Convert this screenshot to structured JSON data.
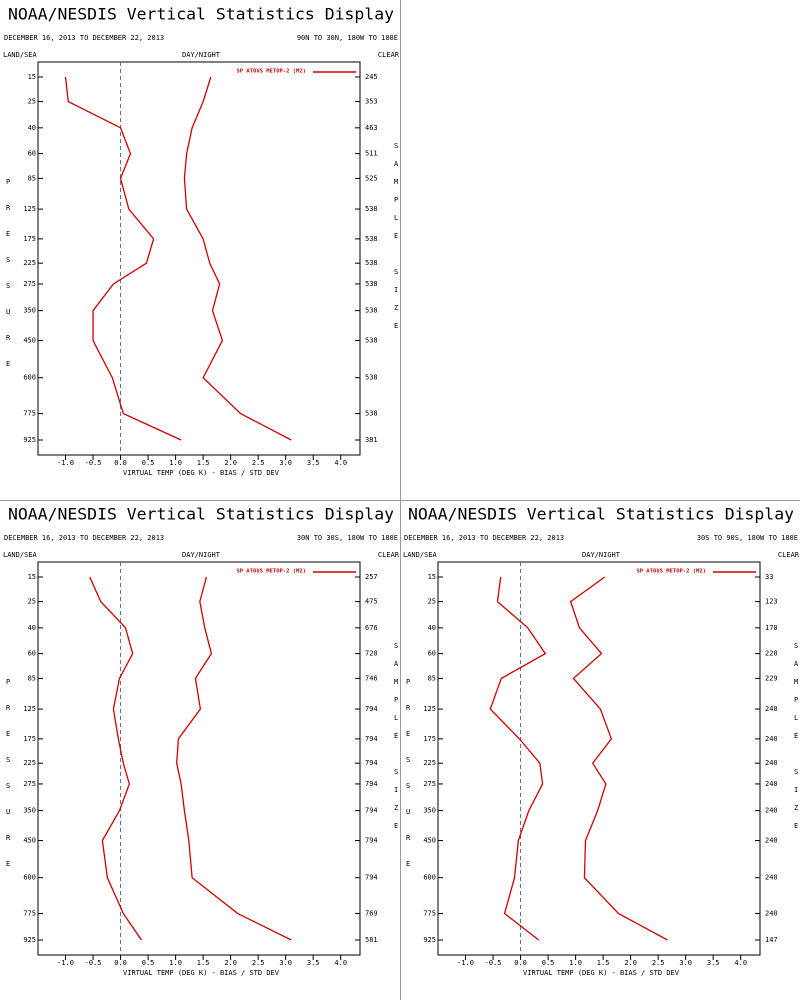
{
  "chart_data": [
    {
      "type": "line",
      "title": "NOAA/NESDIS Vertical Statistics Display",
      "period": "DECEMBER 16, 2013 TO DECEMBER 22, 2013",
      "region": "90N TO 30N, 180W TO 180E",
      "land_sea": "LAND/SEA",
      "day_night": "DAY/NIGHT",
      "clear": "CLEAR",
      "y_label": "PRESSURE",
      "y2_label": "SAMPLE SIZE",
      "x_label": "VIRTUAL TEMP (DEG K) - BIAS / STD DEV",
      "levels": [
        15,
        25,
        40,
        60,
        85,
        125,
        175,
        225,
        275,
        350,
        450,
        600,
        775,
        925
      ],
      "sample_size": [
        245,
        353,
        463,
        511,
        525,
        538,
        538,
        538,
        538,
        538,
        538,
        538,
        538,
        381
      ],
      "series": [
        {
          "name": "SP ATOVS METOP-2 (M2)",
          "color": "#d00000",
          "bias": [
            -1.0,
            -0.95,
            0.0,
            0.18,
            0.0,
            0.15,
            0.6,
            0.47,
            -0.13,
            -0.5,
            -0.5,
            -0.15,
            0.05,
            1.1
          ],
          "std_dev": [
            1.64,
            1.5,
            1.3,
            1.2,
            1.16,
            1.2,
            1.5,
            1.62,
            1.8,
            1.67,
            1.85,
            1.5,
            2.18,
            3.1
          ]
        }
      ],
      "xlim": [
        -1.5,
        4.35
      ],
      "xticks": [
        {
          "value": -1,
          "label": "-1.0"
        },
        -0.5,
        {
          "value": 0,
          "label": "0.0"
        },
        0.5,
        {
          "value": 1,
          "label": "1.0"
        },
        1.5,
        {
          "value": 2,
          "label": "2.0"
        },
        2.5,
        {
          "value": 3,
          "label": "3.0"
        },
        3.5,
        {
          "value": 4,
          "label": "4.0"
        }
      ]
    },
    {
      "type": "line",
      "title": "NOAA/NESDIS Vertical Statistics Display",
      "period": "DECEMBER 16, 2013 TO DECEMBER 22, 2013",
      "region": "30N TO 30S, 180W TO 180E",
      "land_sea": "LAND/SEA",
      "day_night": "DAY/NIGHT",
      "clear": "CLEAR",
      "y_label": "PRESSURE",
      "y2_label": "SAMPLE SIZE",
      "x_label": "VIRTUAL TEMP (DEG K) - BIAS / STD DEV",
      "levels": [
        15,
        25,
        40,
        60,
        85,
        125,
        175,
        225,
        275,
        350,
        450,
        600,
        775,
        925
      ],
      "sample_size": [
        257,
        475,
        676,
        720,
        746,
        794,
        794,
        794,
        794,
        794,
        794,
        794,
        769,
        581
      ],
      "series": [
        {
          "name": "SP ATOVS METOP-2 (M2)",
          "color": "#d00000",
          "bias": [
            -0.56,
            -0.36,
            0.09,
            0.22,
            -0.02,
            -0.13,
            -0.04,
            0.05,
            0.16,
            -0.02,
            -0.33,
            -0.24,
            0.05,
            0.38
          ],
          "std_dev": [
            1.56,
            1.44,
            1.53,
            1.65,
            1.36,
            1.45,
            1.05,
            1.02,
            1.1,
            1.16,
            1.24,
            1.3,
            2.13,
            3.1
          ]
        }
      ],
      "xlim": [
        -1.5,
        4.35
      ],
      "xticks": [
        {
          "value": -1,
          "label": "-1.0"
        },
        -0.5,
        {
          "value": 0,
          "label": "0.0"
        },
        0.5,
        {
          "value": 1,
          "label": "1.0"
        },
        1.5,
        {
          "value": 2,
          "label": "2.0"
        },
        2.5,
        {
          "value": 3,
          "label": "3.0"
        },
        3.5,
        {
          "value": 4,
          "label": "4.0"
        }
      ]
    },
    {
      "type": "line",
      "title": "NOAA/NESDIS Vertical Statistics Display",
      "period": "DECEMBER 16, 2013 TO DECEMBER 22, 2013",
      "region": "30S TO 90S, 180W TO 180E",
      "land_sea": "LAND/SEA",
      "day_night": "DAY/NIGHT",
      "clear": "CLEAR",
      "y_label": "PRESSURE",
      "y2_label": "SAMPLE SIZE",
      "x_label": "VIRTUAL TEMP (DEG K) - BIAS / STD DEV",
      "levels": [
        15,
        25,
        40,
        60,
        85,
        125,
        175,
        225,
        275,
        350,
        450,
        600,
        775,
        925
      ],
      "sample_size": [
        33,
        123,
        170,
        220,
        229,
        240,
        240,
        240,
        240,
        240,
        240,
        240,
        240,
        147
      ],
      "series": [
        {
          "name": "SP ATOVS METOP-2 (M2)",
          "color": "#d00000",
          "bias": [
            -0.36,
            -0.42,
            0.13,
            0.45,
            -0.35,
            -0.55,
            -0.02,
            0.35,
            0.4,
            0.15,
            -0.04,
            -0.11,
            -0.29,
            0.33
          ],
          "std_dev": [
            1.53,
            0.91,
            1.07,
            1.47,
            0.96,
            1.45,
            1.65,
            1.31,
            1.55,
            1.4,
            1.18,
            1.16,
            1.78,
            2.67
          ]
        }
      ],
      "xlim": [
        -1.5,
        4.35
      ],
      "xticks": [
        {
          "value": -1,
          "label": "-1.0"
        },
        -0.5,
        {
          "value": 0,
          "label": "0.0"
        },
        0.5,
        {
          "value": 1,
          "label": "1.0"
        },
        1.5,
        {
          "value": 2,
          "label": "2.0"
        },
        2.5,
        {
          "value": 3,
          "label": "3.0"
        },
        3.5,
        {
          "value": 4,
          "label": "4.0"
        }
      ]
    }
  ]
}
